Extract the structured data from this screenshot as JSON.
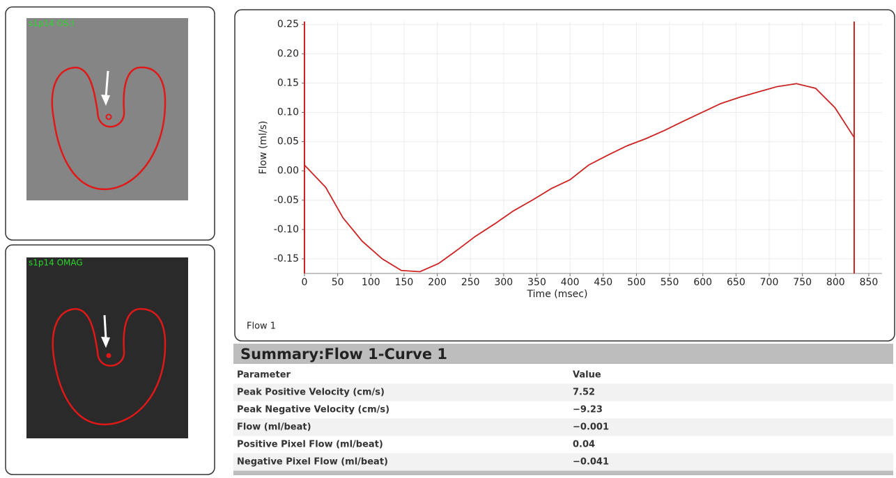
{
  "chart_data": {
    "type": "line",
    "x": [
      0,
      32,
      58,
      87,
      117,
      146,
      174,
      202,
      229,
      257,
      287,
      315,
      343,
      372,
      400,
      428,
      457,
      486,
      514,
      542,
      571,
      599,
      627,
      656,
      684,
      712,
      741,
      770,
      799,
      828
    ],
    "series": [
      {
        "name": "Flow  1",
        "color": "#cc2222",
        "values": [
          0.01,
          -0.028,
          -0.08,
          -0.12,
          -0.15,
          -0.17,
          -0.172,
          -0.158,
          -0.136,
          -0.112,
          -0.09,
          -0.068,
          -0.05,
          -0.03,
          -0.015,
          0.01,
          0.027,
          0.043,
          0.055,
          0.069,
          0.085,
          0.1,
          0.115,
          0.126,
          0.135,
          0.144,
          0.149,
          0.141,
          0.108,
          0.057
        ]
      }
    ],
    "markers": [
      0,
      828
    ],
    "xlabel": "Time (msec)",
    "ylabel": "Flow (ml/s)",
    "xlim": [
      0,
      870
    ],
    "ylim": [
      -0.175,
      0.255
    ],
    "xticks": [
      0,
      50,
      100,
      150,
      200,
      250,
      300,
      350,
      400,
      450,
      500,
      550,
      600,
      650,
      700,
      750,
      800,
      850
    ],
    "yticks": [
      0.25,
      {
        "value": 0.2,
        "label": "0.20"
      },
      0.15,
      {
        "value": 0.1,
        "label": "0.10"
      },
      0.05,
      {
        "value": 0,
        "label": "0.00"
      },
      -0.05,
      {
        "value": -0.1,
        "label": "-0.10"
      },
      -0.15
    ],
    "grid": true
  },
  "images": [
    {
      "label": "s1p14 OS:I"
    },
    {
      "label": "s1p14 OMAG"
    }
  ],
  "table": {
    "title": "Summary:Flow  1-Curve 1",
    "header": [
      "Parameter",
      "Value"
    ],
    "rows": [
      [
        "Peak Positive Velocity (cm/s)",
        "7.52"
      ],
      [
        "Peak Negative Velocity (cm/s)",
        "−9.23"
      ],
      [
        "Flow (ml/beat)",
        "−0.001"
      ],
      [
        "Positive Pixel Flow (ml/beat)",
        "0.04"
      ],
      [
        "Negative Pixel Flow (ml/beat)",
        "−0.041"
      ]
    ]
  }
}
